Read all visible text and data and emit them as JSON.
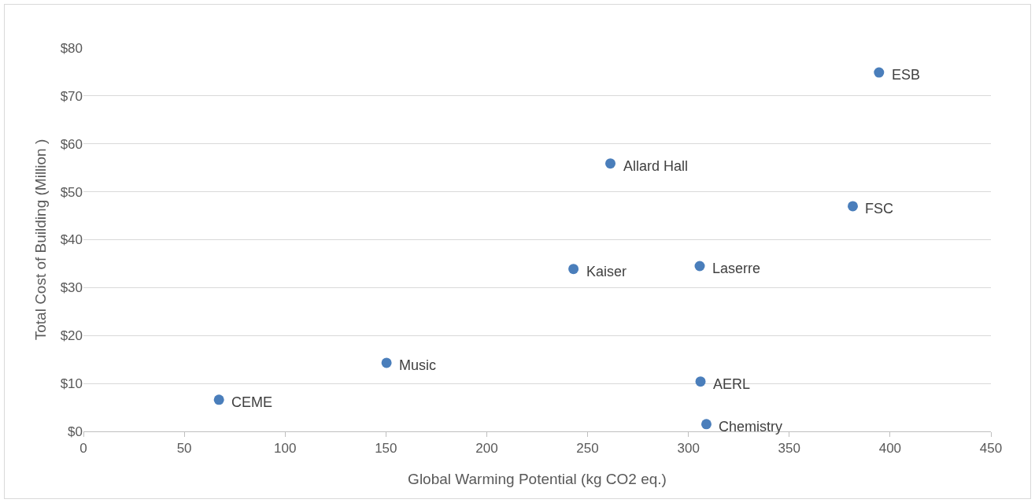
{
  "chart_data": {
    "type": "scatter",
    "xlabel": "Global Warming Potential (kg CO2 eq.)",
    "ylabel": "Total Cost of Building (Million )",
    "x": [
      67.2,
      150.3,
      243,
      261.3,
      305.6,
      306,
      308.9,
      381.5,
      394.5
    ],
    "series": [
      {
        "color": "#4a7ebb",
        "values": [
          6.6,
          14.3,
          33.9,
          55.9,
          34.5,
          10.4,
          1.5,
          47,
          74.9
        ]
      }
    ],
    "annotations": [
      {
        "text": "CEME",
        "x": 67.2,
        "y": 6.6
      },
      {
        "text": "Music",
        "x": 150.3,
        "y": 14.3
      },
      {
        "text": "Kaiser",
        "x": 243,
        "y": 33.9
      },
      {
        "text": "Allard Hall",
        "x": 261.3,
        "y": 55.9
      },
      {
        "text": "Laserre",
        "x": 305.6,
        "y": 34.5
      },
      {
        "text": "AERL",
        "x": 306,
        "y": 10.4
      },
      {
        "text": "Chemistry",
        "x": 308.9,
        "y": 1.5
      },
      {
        "text": "FSC",
        "x": 381.5,
        "y": 47
      },
      {
        "text": "ESB",
        "x": 394.5,
        "y": 74.9
      }
    ],
    "xlim": [
      0,
      450
    ],
    "xticks": [
      0,
      50,
      100,
      150,
      200,
      250,
      300,
      350,
      400,
      450
    ],
    "ylim": [
      0,
      80
    ],
    "yticks": [
      {
        "value": 0,
        "label": "$0"
      },
      {
        "value": 10,
        "label": "$10"
      },
      {
        "value": 20,
        "label": "$20"
      },
      {
        "value": 30,
        "label": "$30"
      },
      {
        "value": 40,
        "label": "$40"
      },
      {
        "value": 50,
        "label": "$50"
      },
      {
        "value": 60,
        "label": "$60"
      },
      {
        "value": 70,
        "label": "$70"
      },
      {
        "value": 80,
        "label": "$80"
      }
    ],
    "grid": "y",
    "marker": "circle"
  }
}
